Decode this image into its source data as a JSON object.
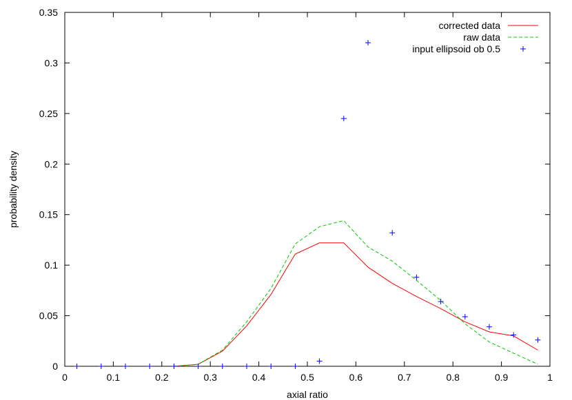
{
  "chart_data": {
    "type": "line",
    "xlabel": "axial ratio",
    "ylabel": "probability density",
    "xlim": [
      0,
      1
    ],
    "ylim": [
      0,
      0.35
    ],
    "x_ticks": [
      0,
      0.1,
      0.2,
      0.3,
      0.4,
      0.5,
      0.6,
      0.7,
      0.8,
      0.9,
      1
    ],
    "x_tick_labels": [
      "0",
      "0.1",
      "0.2",
      "0.3",
      "0.4",
      "0.5",
      "0.6",
      "0.7",
      "0.8",
      "0.9",
      "1"
    ],
    "y_ticks": [
      0,
      0.05,
      0.1,
      0.15,
      0.2,
      0.25,
      0.3,
      0.35
    ],
    "y_tick_labels": [
      "0",
      "0.05",
      "0.1",
      "0.15",
      "0.2",
      "0.25",
      "0.3",
      "0.35"
    ],
    "grid": false,
    "legend_position": "top-right",
    "series": [
      {
        "name": "corrected data",
        "style": "line",
        "color": "#ff0000",
        "dash": "",
        "x": [
          0.225,
          0.275,
          0.325,
          0.375,
          0.425,
          0.475,
          0.525,
          0.575,
          0.625,
          0.675,
          0.725,
          0.775,
          0.825,
          0.875,
          0.925,
          0.975
        ],
        "y": [
          0.0,
          0.002,
          0.015,
          0.04,
          0.071,
          0.111,
          0.122,
          0.122,
          0.098,
          0.082,
          0.069,
          0.057,
          0.044,
          0.034,
          0.03,
          0.016
        ]
      },
      {
        "name": "raw data",
        "style": "line",
        "color": "#00c800",
        "dash": "5,3",
        "x": [
          0.225,
          0.275,
          0.325,
          0.375,
          0.425,
          0.475,
          0.525,
          0.575,
          0.625,
          0.675,
          0.725,
          0.775,
          0.825,
          0.875,
          0.925,
          0.975
        ],
        "y": [
          0.0,
          0.002,
          0.016,
          0.044,
          0.077,
          0.121,
          0.138,
          0.144,
          0.118,
          0.104,
          0.085,
          0.065,
          0.042,
          0.024,
          0.013,
          0.002
        ]
      },
      {
        "name": "input ellipsoid ob 0.5",
        "style": "points",
        "marker": "plus",
        "color": "#0000ff",
        "x": [
          0.025,
          0.075,
          0.125,
          0.175,
          0.225,
          0.275,
          0.325,
          0.375,
          0.425,
          0.475,
          0.525,
          0.575,
          0.625,
          0.675,
          0.725,
          0.775,
          0.825,
          0.875,
          0.925,
          0.975
        ],
        "y": [
          0,
          0,
          0,
          0,
          0,
          0,
          0,
          0,
          0,
          0,
          0.005,
          0.245,
          0.32,
          0.132,
          0.088,
          0.064,
          0.049,
          0.039,
          0.031,
          0.026
        ]
      }
    ]
  }
}
